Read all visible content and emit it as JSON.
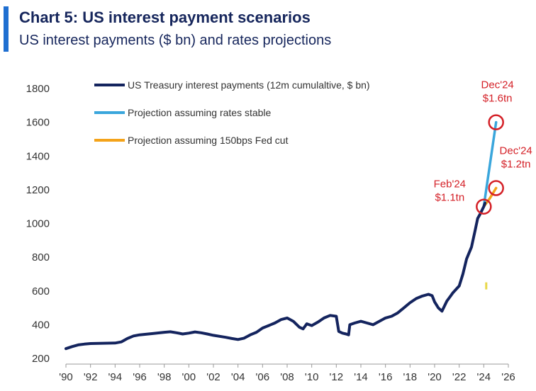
{
  "title": "Chart 5: US interest payment scenarios",
  "subtitle": "US interest payments ($ bn) and rates projections",
  "colors": {
    "accent": "#1f6fd1",
    "title": "#16265c",
    "series_actual": "#14245e",
    "series_stable": "#3aa6dc",
    "series_cut": "#f4a31a",
    "annotation": "#d42027",
    "marker": "#e8d84a"
  },
  "chart_data": {
    "type": "line",
    "title": "Chart 5: US interest payment scenarios",
    "subtitle": "US interest payments ($ bn) and rates projections",
    "xlabel": "",
    "ylabel": "",
    "xlim": [
      1990,
      2026
    ],
    "ylim": [
      200,
      1800
    ],
    "y_ticks": [
      200,
      400,
      600,
      800,
      1000,
      1200,
      1400,
      1600,
      1800
    ],
    "y_tick_labels": [
      "200",
      "400",
      "600",
      "800",
      "1000",
      "1200",
      "1400",
      "1600",
      "1800"
    ],
    "x_ticks": [
      1990,
      1992,
      1994,
      1996,
      1998,
      2000,
      2002,
      2004,
      2006,
      2008,
      2010,
      2012,
      2014,
      2016,
      2018,
      2020,
      2022,
      2024,
      2026
    ],
    "x_tick_labels": [
      "'90",
      "'92",
      "'94",
      "'96",
      "'98",
      "'00",
      "'02",
      "'04",
      "'06",
      "'08",
      "'10",
      "'12",
      "'14",
      "'16",
      "'18",
      "'20",
      "'22",
      "'24",
      "'26"
    ],
    "grid": false,
    "legend_position": "top-left",
    "series": [
      {
        "name": "US Treasury interest payments (12m cumulaltive, $ bn)",
        "key": "actual",
        "points": [
          [
            1990,
            258
          ],
          [
            1990.5,
            270
          ],
          [
            1991,
            280
          ],
          [
            1991.5,
            285
          ],
          [
            1992,
            288
          ],
          [
            1993,
            290
          ],
          [
            1994,
            291
          ],
          [
            1994.5,
            298
          ],
          [
            1995,
            318
          ],
          [
            1995.5,
            333
          ],
          [
            1996,
            340
          ],
          [
            1997,
            347
          ],
          [
            1998,
            355
          ],
          [
            1998.5,
            358
          ],
          [
            1999,
            352
          ],
          [
            1999.5,
            345
          ],
          [
            2000,
            350
          ],
          [
            2000.5,
            357
          ],
          [
            2001,
            352
          ],
          [
            2001.5,
            345
          ],
          [
            2002,
            337
          ],
          [
            2003,
            325
          ],
          [
            2003.5,
            318
          ],
          [
            2004,
            312
          ],
          [
            2004.5,
            320
          ],
          [
            2005,
            340
          ],
          [
            2005.5,
            355
          ],
          [
            2006,
            380
          ],
          [
            2006.5,
            395
          ],
          [
            2007,
            410
          ],
          [
            2007.5,
            430
          ],
          [
            2008,
            440
          ],
          [
            2008.5,
            420
          ],
          [
            2009,
            385
          ],
          [
            2009.3,
            375
          ],
          [
            2009.6,
            405
          ],
          [
            2010,
            395
          ],
          [
            2010.5,
            415
          ],
          [
            2011,
            440
          ],
          [
            2011.5,
            455
          ],
          [
            2012,
            450
          ],
          [
            2012.2,
            360
          ],
          [
            2012.5,
            350
          ],
          [
            2012.8,
            345
          ],
          [
            2013,
            340
          ],
          [
            2013.1,
            400
          ],
          [
            2013.5,
            410
          ],
          [
            2014,
            420
          ],
          [
            2014.5,
            410
          ],
          [
            2015,
            400
          ],
          [
            2015.5,
            420
          ],
          [
            2016,
            440
          ],
          [
            2016.5,
            450
          ],
          [
            2017,
            470
          ],
          [
            2017.5,
            500
          ],
          [
            2018,
            530
          ],
          [
            2018.5,
            555
          ],
          [
            2019,
            570
          ],
          [
            2019.5,
            580
          ],
          [
            2019.8,
            572
          ],
          [
            2020,
            535
          ],
          [
            2020.3,
            500
          ],
          [
            2020.6,
            480
          ],
          [
            2021,
            540
          ],
          [
            2021.5,
            590
          ],
          [
            2022,
            630
          ],
          [
            2022.3,
            700
          ],
          [
            2022.6,
            790
          ],
          [
            2023,
            860
          ],
          [
            2023.3,
            960
          ],
          [
            2023.5,
            1030
          ],
          [
            2023.7,
            1055
          ],
          [
            2024.0,
            1100
          ],
          [
            2024.1,
            1120
          ]
        ]
      },
      {
        "name": "Projection assuming rates stable",
        "key": "stable",
        "points": [
          [
            2024.0,
            1100
          ],
          [
            2024.5,
            1350
          ],
          [
            2025.0,
            1600
          ]
        ]
      },
      {
        "name": "Projection assuming 150bps Fed cut",
        "key": "cut",
        "points": [
          [
            2024.0,
            1100
          ],
          [
            2024.5,
            1150
          ],
          [
            2025.0,
            1210
          ]
        ]
      }
    ],
    "annotations": [
      {
        "line1": "Feb'24",
        "line2": "$1.1tn",
        "x": 2024.0,
        "y": 1100
      },
      {
        "line1": "Dec'24",
        "line2": "$1.6tn",
        "x": 2025.0,
        "y": 1600
      },
      {
        "line1": "Dec'24",
        "line2": "$1.2tn",
        "x": 2025.0,
        "y": 1210
      }
    ],
    "marker_point": {
      "x": 2024.2,
      "y": 630
    }
  }
}
